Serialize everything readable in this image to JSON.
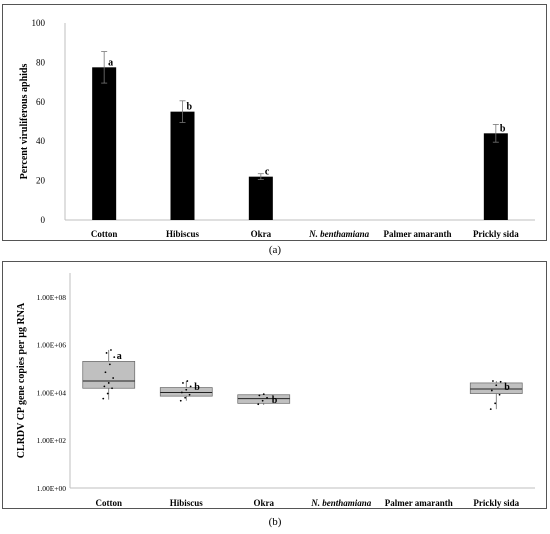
{
  "panels": {
    "a_label": "(a)",
    "b_label": "(b)"
  },
  "chart_data": [
    {
      "type": "bar",
      "title": "",
      "ylabel": "Percent viruliferous aphids",
      "xlabel": "",
      "ylim": [
        0,
        100
      ],
      "yticks": [
        "0",
        "20",
        "40",
        "60",
        "80",
        "100"
      ],
      "ytick_values": [
        0,
        20,
        40,
        60,
        80,
        100
      ],
      "categories": [
        "Cotton",
        "Hibiscus",
        "Okra",
        "N. benthamiana",
        "Palmer amaranth",
        "Prickly sida"
      ],
      "italic_categories": [
        false,
        false,
        false,
        true,
        false,
        false
      ],
      "values": [
        77.5,
        55,
        22,
        0,
        0,
        44
      ],
      "errors": [
        8,
        5.5,
        1.5,
        0,
        0,
        4.5
      ],
      "letters": [
        "a",
        "b",
        "c",
        "",
        "",
        "b"
      ],
      "grid": false,
      "colors": {
        "bar": "#000000",
        "axis": "#bfbfbf"
      }
    },
    {
      "type": "boxplot",
      "title": "",
      "ylabel": "CLRDV CP gene copies per µg RNA",
      "xlabel": "",
      "yscale": "log",
      "ylim": [
        1,
        1000000000
      ],
      "yticks": [
        "1.00E+00",
        "1.00E+02",
        "1.00E+04",
        "1.00E+06",
        "1.00E+08"
      ],
      "ytick_values": [
        1,
        100,
        10000,
        1000000,
        100000000
      ],
      "categories": [
        "Cotton",
        "Hibiscus",
        "Okra",
        "N. benthamiana",
        "Palmer amaranth",
        "Prickly sida"
      ],
      "italic_categories": [
        false,
        false,
        false,
        true,
        false,
        false
      ],
      "boxes": [
        {
          "category": "Cotton",
          "q1": 15000,
          "median": 30000,
          "q3": 200000,
          "min": 5000,
          "max": 600000,
          "letter": "a",
          "points": [
            5500,
            9000,
            15000,
            18000,
            25000,
            40000,
            70000,
            150000,
            300000,
            450000,
            600000
          ]
        },
        {
          "category": "Hibiscus",
          "q1": 7000,
          "median": 10000,
          "q3": 16000,
          "min": 4500,
          "max": 30000,
          "letter": "b",
          "points": [
            4500,
            6000,
            8000,
            10000,
            13000,
            18000,
            25000,
            30000
          ]
        },
        {
          "category": "Okra",
          "q1": 3500,
          "median": 5500,
          "q3": 8000,
          "min": 3000,
          "max": 8500,
          "letter": "b",
          "points": [
            3200,
            4500,
            6000,
            7500,
            8500
          ]
        },
        {
          "category": "Prickly sida",
          "q1": 9000,
          "median": 14000,
          "q3": 25000,
          "min": 2000,
          "max": 30000,
          "letter": "b",
          "points": [
            2000,
            3500,
            8000,
            12000,
            20000,
            28000,
            30000
          ]
        }
      ],
      "grid": false,
      "colors": {
        "box": "#c0c0c0",
        "axis": "#bfbfbf"
      }
    }
  ]
}
